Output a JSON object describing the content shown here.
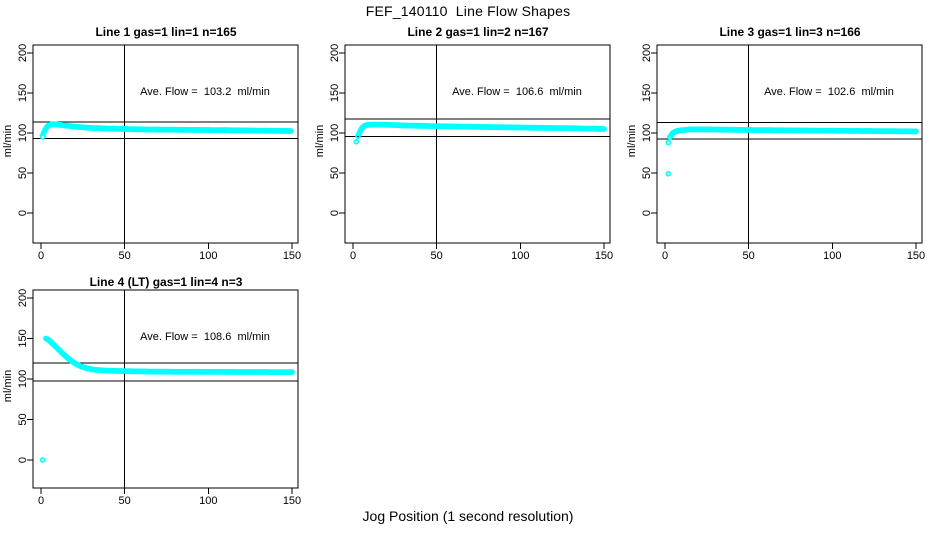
{
  "page": {
    "title": "FEF_140110  Line Flow Shapes",
    "xlabel": "Jog Position (1 second resolution)",
    "background": "#ffffff",
    "data_color": "#00ffff",
    "axis_color": "#000000"
  },
  "chart_data": [
    {
      "type": "scatter",
      "title": "Line 1 gas=1 lin=1 n=165",
      "annotation": "Ave. Flow =  103.2  ml/min",
      "ave_flow_ml_min": 103.2,
      "n": 165,
      "ylabel": "ml/min",
      "xlim": [
        0,
        150
      ],
      "ylim": [
        0,
        200
      ],
      "x_ticks": [
        0,
        50,
        100,
        150
      ],
      "y_ticks": [
        0,
        50,
        100,
        150,
        200
      ],
      "grid": false,
      "vline_x": 50,
      "hlines": [
        113.5,
        92.9
      ],
      "outliers": [
        [
          1,
          95
        ]
      ],
      "curve_keypoints": [
        [
          1,
          97
        ],
        [
          2,
          102
        ],
        [
          3,
          106
        ],
        [
          4,
          108.5
        ],
        [
          5,
          110
        ],
        [
          7,
          111
        ],
        [
          10,
          110.5
        ],
        [
          14,
          109.5
        ],
        [
          20,
          108
        ],
        [
          28,
          106.5
        ],
        [
          40,
          105.5
        ],
        [
          50,
          105
        ],
        [
          60,
          104.5
        ],
        [
          85,
          104
        ],
        [
          110,
          103.5
        ],
        [
          130,
          103
        ],
        [
          150,
          102.5
        ]
      ]
    },
    {
      "type": "scatter",
      "title": "Line 2 gas=1 lin=2 n=167",
      "annotation": "Ave. Flow =  106.6  ml/min",
      "ave_flow_ml_min": 106.6,
      "n": 167,
      "ylabel": "ml/min",
      "xlim": [
        0,
        150
      ],
      "ylim": [
        0,
        200
      ],
      "x_ticks": [
        0,
        50,
        100,
        150
      ],
      "y_ticks": [
        0,
        50,
        100,
        150,
        200
      ],
      "grid": false,
      "vline_x": 50,
      "hlines": [
        117.3,
        95.9
      ],
      "outliers": [
        [
          2,
          89
        ]
      ],
      "curve_keypoints": [
        [
          3,
          96
        ],
        [
          4,
          101
        ],
        [
          5,
          105
        ],
        [
          6,
          108
        ],
        [
          8,
          110
        ],
        [
          12,
          110.5
        ],
        [
          18,
          110.5
        ],
        [
          30,
          109.5
        ],
        [
          50,
          108.5
        ],
        [
          80,
          107.5
        ],
        [
          110,
          106.5
        ],
        [
          130,
          106
        ],
        [
          150,
          105
        ]
      ]
    },
    {
      "type": "scatter",
      "title": "Line 3 gas=1 lin=3 n=166",
      "annotation": "Ave. Flow =  102.6  ml/min",
      "ave_flow_ml_min": 102.6,
      "n": 166,
      "ylabel": "ml/min",
      "xlim": [
        0,
        150
      ],
      "ylim": [
        0,
        200
      ],
      "x_ticks": [
        0,
        50,
        100,
        150
      ],
      "y_ticks": [
        0,
        50,
        100,
        150,
        200
      ],
      "grid": false,
      "vline_x": 50,
      "hlines": [
        112.9,
        92.3
      ],
      "outliers": [
        [
          2,
          88
        ],
        [
          2,
          49
        ]
      ],
      "curve_keypoints": [
        [
          3,
          95
        ],
        [
          4,
          98.5
        ],
        [
          5,
          100.5
        ],
        [
          7,
          102.5
        ],
        [
          10,
          103.5
        ],
        [
          15,
          104.5
        ],
        [
          25,
          104.5
        ],
        [
          40,
          104
        ],
        [
          60,
          103.5
        ],
        [
          90,
          103
        ],
        [
          120,
          102.5
        ],
        [
          150,
          102
        ]
      ]
    },
    {
      "type": "scatter",
      "title": "Line 4 (LT) gas=1 lin=4 n=3",
      "annotation": "Ave. Flow =  108.6  ml/min",
      "ave_flow_ml_min": 108.6,
      "n": 3,
      "ylabel": "ml/min",
      "xlim": [
        0,
        150
      ],
      "ylim": [
        0,
        200
      ],
      "x_ticks": [
        0,
        50,
        100,
        150
      ],
      "y_ticks": [
        0,
        50,
        100,
        150,
        200
      ],
      "grid": false,
      "vline_x": 50,
      "hlines": [
        119.5,
        97.7
      ],
      "outliers": [
        [
          1,
          0
        ]
      ],
      "curve_keypoints": [
        [
          3,
          150
        ],
        [
          4,
          149
        ],
        [
          5,
          147.5
        ],
        [
          6,
          145.5
        ],
        [
          7,
          143.5
        ],
        [
          8,
          141.5
        ],
        [
          10,
          137.5
        ],
        [
          12,
          133.5
        ],
        [
          14,
          129.5
        ],
        [
          16,
          126
        ],
        [
          18,
          122.5
        ],
        [
          21,
          118.5
        ],
        [
          24,
          115.5
        ],
        [
          27,
          113.5
        ],
        [
          30,
          112
        ],
        [
          34,
          111
        ],
        [
          38,
          110.5
        ],
        [
          45,
          110
        ],
        [
          55,
          109.5
        ],
        [
          70,
          109
        ],
        [
          100,
          108.8
        ],
        [
          150,
          108.5
        ]
      ]
    }
  ]
}
